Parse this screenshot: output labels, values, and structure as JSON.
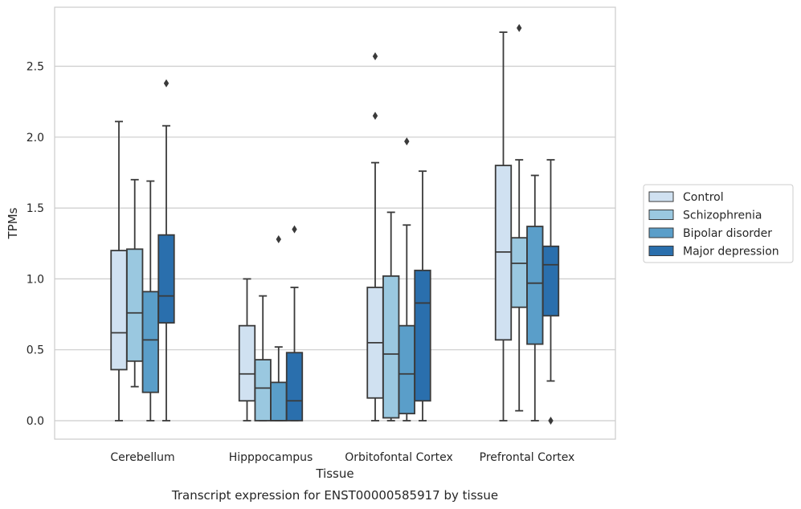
{
  "caption": "Transcript expression for ENST00000585917 by tissue",
  "chart_data": {
    "type": "boxplot",
    "xlabel": "Tissue",
    "ylabel": "TPMs",
    "ylim": [
      -0.13,
      2.92
    ],
    "yticks": [
      "0.0",
      "0.5",
      "1.0",
      "1.5",
      "2.0",
      "2.5"
    ],
    "grid": true,
    "legend_position": "right",
    "categories": [
      "Cerebellum",
      "Hipppocampus",
      "Orbitofontal Cortex",
      "Prefrontal Cortex"
    ],
    "series": [
      {
        "name": "Control",
        "color": "#d0e1f1",
        "boxes": [
          {
            "whislo": 0.0,
            "q1": 0.36,
            "med": 0.62,
            "q3": 1.2,
            "whishi": 2.11,
            "fliers": []
          },
          {
            "whislo": 0.0,
            "q1": 0.14,
            "med": 0.33,
            "q3": 0.67,
            "whishi": 1.0,
            "fliers": []
          },
          {
            "whislo": 0.0,
            "q1": 0.16,
            "med": 0.55,
            "q3": 0.94,
            "whishi": 1.82,
            "fliers": [
              2.15,
              2.57
            ]
          },
          {
            "whislo": 0.0,
            "q1": 0.57,
            "med": 1.19,
            "q3": 1.8,
            "whishi": 2.74,
            "fliers": []
          }
        ]
      },
      {
        "name": "Schizophrenia",
        "color": "#9ac8e0",
        "boxes": [
          {
            "whislo": 0.24,
            "q1": 0.42,
            "med": 0.76,
            "q3": 1.21,
            "whishi": 1.7,
            "fliers": []
          },
          {
            "whislo": 0.0,
            "q1": 0.0,
            "med": 0.23,
            "q3": 0.43,
            "whishi": 0.88,
            "fliers": []
          },
          {
            "whislo": 0.0,
            "q1": 0.02,
            "med": 0.47,
            "q3": 1.02,
            "whishi": 1.47,
            "fliers": []
          },
          {
            "whislo": 0.07,
            "q1": 0.8,
            "med": 1.11,
            "q3": 1.29,
            "whishi": 1.84,
            "fliers": [
              2.77
            ]
          }
        ]
      },
      {
        "name": "Bipolar disorder",
        "color": "#5a9ec9",
        "boxes": [
          {
            "whislo": 0.0,
            "q1": 0.2,
            "med": 0.57,
            "q3": 0.91,
            "whishi": 1.69,
            "fliers": []
          },
          {
            "whislo": 0.0,
            "q1": 0.0,
            "med": 0.0,
            "q3": 0.27,
            "whishi": 0.52,
            "fliers": [
              1.28
            ]
          },
          {
            "whislo": 0.0,
            "q1": 0.05,
            "med": 0.33,
            "q3": 0.67,
            "whishi": 1.38,
            "fliers": [
              1.97
            ]
          },
          {
            "whislo": 0.0,
            "q1": 0.54,
            "med": 0.97,
            "q3": 1.37,
            "whishi": 1.73,
            "fliers": []
          }
        ]
      },
      {
        "name": "Major depression",
        "color": "#2a6fad",
        "boxes": [
          {
            "whislo": 0.0,
            "q1": 0.69,
            "med": 0.88,
            "q3": 1.31,
            "whishi": 2.08,
            "fliers": [
              2.38
            ]
          },
          {
            "whislo": 0.0,
            "q1": 0.0,
            "med": 0.14,
            "q3": 0.48,
            "whishi": 0.94,
            "fliers": [
              1.35
            ]
          },
          {
            "whislo": 0.0,
            "q1": 0.14,
            "med": 0.83,
            "q3": 1.06,
            "whishi": 1.76,
            "fliers": []
          },
          {
            "whislo": 0.28,
            "q1": 0.74,
            "med": 1.1,
            "q3": 1.23,
            "whishi": 1.84,
            "fliers": [
              0.0
            ]
          }
        ]
      }
    ]
  }
}
